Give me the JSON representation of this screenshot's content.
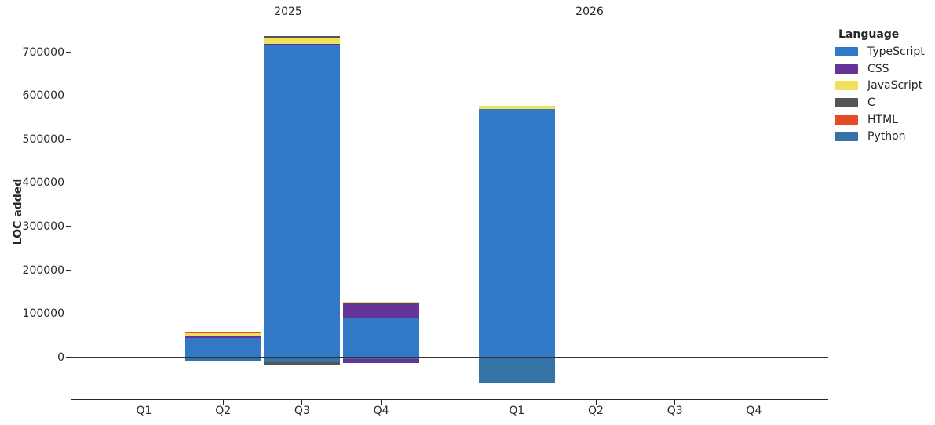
{
  "figure": {
    "y_axis_title": "LOC added",
    "facet_titles": [
      "2025",
      "2026"
    ],
    "y_tick_labels": [
      "0",
      "100000",
      "200000",
      "300000",
      "400000",
      "500000",
      "600000",
      "700000"
    ]
  },
  "legend": {
    "title": "Language",
    "items": [
      {
        "label": "TypeScript",
        "color": "#3178c6"
      },
      {
        "label": "CSS",
        "color": "#663399"
      },
      {
        "label": "JavaScript",
        "color": "#f1e05a"
      },
      {
        "label": "C",
        "color": "#555555"
      },
      {
        "label": "HTML",
        "color": "#e34c26"
      },
      {
        "label": "Python",
        "color": "#3572a5"
      }
    ]
  },
  "chart_data": {
    "type": "bar",
    "stacked": true,
    "title": "",
    "xlabel": "",
    "ylabel": "LOC added",
    "y_ticks": [
      0,
      100000,
      200000,
      300000,
      400000,
      500000,
      600000,
      700000
    ],
    "ylim": [
      -85000,
      770000
    ],
    "grid": false,
    "legend_position": "upper right",
    "series_order": [
      "TypeScript",
      "CSS",
      "JavaScript",
      "C",
      "HTML",
      "Python"
    ],
    "facets": [
      {
        "year": "2025",
        "categories": [
          "Q1",
          "Q2",
          "Q3",
          "Q4"
        ],
        "bars": [
          {
            "quarter": "Q1",
            "segments": []
          },
          {
            "quarter": "Q2",
            "segments": [
              {
                "language": "TypeScript",
                "value": 44000
              },
              {
                "language": "CSS",
                "value": 3500
              },
              {
                "language": "JavaScript",
                "value": 7300
              },
              {
                "language": "HTML",
                "value": 3500
              },
              {
                "language": "Python",
                "value": -7500
              }
            ]
          },
          {
            "quarter": "Q3",
            "segments": [
              {
                "language": "TypeScript",
                "value": 715000
              },
              {
                "language": "CSS",
                "value": 4000
              },
              {
                "language": "JavaScript",
                "value": 14500
              },
              {
                "language": "C",
                "value": 3500
              },
              {
                "language": "Python",
                "value": -12000
              },
              {
                "language": "C",
                "value": -5000
              }
            ]
          },
          {
            "quarter": "Q4",
            "segments": [
              {
                "language": "TypeScript",
                "value": 91000
              },
              {
                "language": "CSS",
                "value": 32000
              },
              {
                "language": "JavaScript",
                "value": 3500
              },
              {
                "language": "Python",
                "value": -5000
              },
              {
                "language": "CSS",
                "value": -8000
              }
            ]
          }
        ]
      },
      {
        "year": "2026",
        "categories": [
          "Q1",
          "Q2",
          "Q3",
          "Q4"
        ],
        "bars": [
          {
            "quarter": "Q1",
            "segments": [
              {
                "language": "TypeScript",
                "value": 570000
              },
              {
                "language": "JavaScript",
                "value": 6000
              },
              {
                "language": "Python",
                "value": -57500
              }
            ]
          },
          {
            "quarter": "Q2",
            "segments": []
          },
          {
            "quarter": "Q3",
            "segments": []
          },
          {
            "quarter": "Q4",
            "segments": []
          }
        ]
      }
    ]
  }
}
